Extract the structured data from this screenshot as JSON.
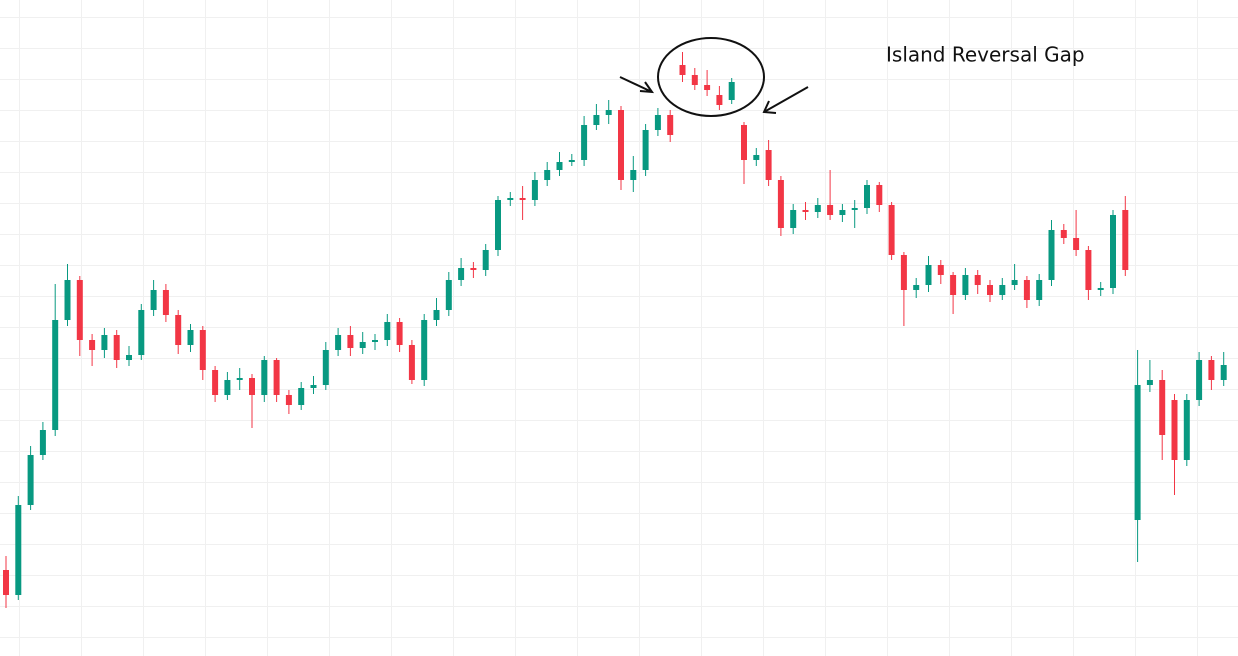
{
  "chart_data": {
    "type": "candlestick",
    "annotation": "Island Reversal Gap",
    "up_color": "#089981",
    "down_color": "#f23645",
    "ylim": [
      0,
      656
    ],
    "open": [
      86,
      61,
      151,
      201,
      226,
      336,
      376,
      316,
      306,
      321,
      296,
      301,
      346,
      366,
      341,
      311,
      326,
      286,
      261,
      276,
      278,
      261,
      296,
      261,
      251,
      268,
      271,
      306,
      321,
      308,
      314,
      316,
      334,
      311,
      276,
      336,
      346,
      376,
      388,
      386,
      406,
      456,
      458,
      456,
      476,
      486,
      494,
      496,
      531,
      541,
      546,
      476,
      486,
      526,
      541,
      591,
      581,
      571,
      561,
      556,
      531,
      496,
      506,
      476,
      428,
      446,
      444,
      451,
      441,
      446,
      448,
      471,
      451,
      401,
      366,
      371,
      391,
      381,
      361,
      381,
      371,
      361,
      371,
      376,
      356,
      376,
      426,
      418,
      406,
      366,
      368,
      446,
      136,
      271,
      276,
      256,
      196,
      256,
      296,
      276
    ],
    "high": [
      100,
      160,
      210,
      234,
      372,
      392,
      380,
      322,
      328,
      326,
      310,
      352,
      376,
      372,
      346,
      332,
      330,
      290,
      284,
      288,
      282,
      300,
      298,
      266,
      274,
      280,
      314,
      328,
      330,
      324,
      322,
      342,
      338,
      316,
      342,
      358,
      384,
      398,
      394,
      412,
      460,
      464,
      470,
      484,
      494,
      504,
      502,
      540,
      552,
      556,
      550,
      500,
      532,
      548,
      546,
      604,
      588,
      586,
      570,
      578,
      534,
      508,
      516,
      480,
      452,
      454,
      458,
      486,
      452,
      456,
      476,
      474,
      454,
      404,
      378,
      400,
      396,
      384,
      388,
      386,
      376,
      378,
      392,
      380,
      382,
      436,
      432,
      446,
      410,
      374,
      446,
      460,
      306,
      296,
      286,
      262,
      262,
      304,
      300,
      304
    ],
    "low": [
      48,
      56,
      146,
      196,
      220,
      330,
      300,
      290,
      298,
      288,
      290,
      296,
      340,
      334,
      302,
      304,
      276,
      254,
      256,
      266,
      228,
      254,
      254,
      242,
      246,
      262,
      266,
      300,
      300,
      302,
      306,
      310,
      304,
      272,
      270,
      330,
      340,
      370,
      378,
      380,
      400,
      450,
      436,
      450,
      470,
      480,
      490,
      490,
      526,
      532,
      466,
      464,
      480,
      520,
      514,
      574,
      566,
      560,
      546,
      552,
      472,
      490,
      470,
      420,
      422,
      436,
      438,
      436,
      434,
      428,
      442,
      444,
      396,
      330,
      358,
      364,
      372,
      342,
      356,
      362,
      354,
      356,
      366,
      348,
      350,
      370,
      412,
      400,
      356,
      360,
      362,
      380,
      94,
      264,
      196,
      161,
      190,
      250,
      266,
      270
    ],
    "close": [
      61,
      151,
      201,
      226,
      336,
      376,
      316,
      306,
      321,
      296,
      301,
      346,
      366,
      341,
      311,
      326,
      286,
      261,
      276,
      278,
      261,
      296,
      261,
      251,
      268,
      271,
      306,
      321,
      308,
      314,
      316,
      334,
      311,
      276,
      336,
      346,
      376,
      388,
      386,
      406,
      456,
      458,
      456,
      476,
      486,
      494,
      496,
      531,
      541,
      546,
      476,
      486,
      526,
      541,
      521,
      581,
      571,
      566,
      551,
      574,
      496,
      501,
      476,
      428,
      446,
      444,
      451,
      441,
      446,
      448,
      471,
      451,
      401,
      366,
      371,
      391,
      381,
      361,
      381,
      371,
      361,
      371,
      376,
      356,
      376,
      426,
      418,
      406,
      366,
      368,
      441,
      386,
      271,
      276,
      221,
      196,
      256,
      296,
      276,
      291
    ]
  }
}
